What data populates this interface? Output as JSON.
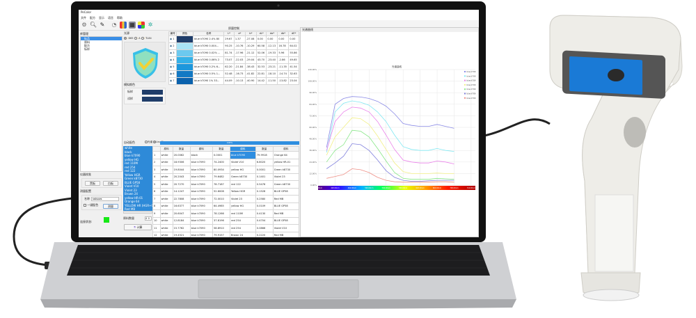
{
  "app": {
    "title": "PeColor",
    "menu": [
      "文件",
      "配方",
      "显示",
      "语言",
      "帮助"
    ],
    "toolbar_icons": [
      "gear-icon",
      "search-icon",
      "pen-icon",
      "gauge-icon",
      "color-bars-icon",
      "palette-icon",
      "color-grid-icon",
      "settings-icon"
    ]
  },
  "library": {
    "header": "库管理",
    "items": [
      "标品",
      "原料",
      "配方",
      "标样"
    ]
  },
  "light_source": {
    "label": "光源",
    "options": [
      "D65",
      "A",
      "TL84"
    ],
    "selected": "D65"
  },
  "simulated_color": {
    "label": "模拟颜色",
    "standard_label": "标样",
    "sample_label": "试样",
    "standard_color": "#1f3d6a",
    "sample_color": "#1f3d6a"
  },
  "instrument_status": {
    "label": "仪器校准",
    "black_button": "黑板",
    "white_button": "白板"
  },
  "measure_config": {
    "label": "测量配置",
    "name_label": "名称",
    "name_value": "radsows",
    "one_key_label": "一键配色",
    "measure_button": "测量"
  },
  "connection": {
    "label": "连接状态:",
    "status_color": "#16e816"
  },
  "quality_table": {
    "title": "质量控制",
    "headers": [
      "编号",
      "颜色",
      "名称",
      "L*",
      "a*",
      "b*",
      "dL*",
      "da*",
      "db*",
      "dE*"
    ],
    "rows": [
      {
        "no": "1",
        "color": "#1f3d6a",
        "cells": [
          "blue k7090 2.4% 80",
          "29.67",
          "1.37",
          "-27.08",
          "0.00",
          "0.00",
          "0.00",
          "0.00"
        ]
      },
      {
        "no": "2",
        "color": "#a9e3f5",
        "cells": [
          "blue k7090 0.004...",
          "90.25",
          "-10.76",
          "-10.29",
          "60.58",
          "-12.13",
          "16.78",
          "64.02"
        ]
      },
      {
        "no": "3",
        "color": "#6cc9ef",
        "cells": [
          "blue k7090 0.02% ...",
          "81.74",
          "-17.96",
          "-21.12",
          "52.06",
          "-19.33",
          "5.96",
          "55.86"
        ]
      },
      {
        "no": "4",
        "color": "#35b1e8",
        "cells": [
          "blue k7090 0.06% 2",
          "73.07",
          "-22.03",
          "-29.04",
          "43.70",
          "-23.40",
          "-2.86",
          "49.65"
        ]
      },
      {
        "no": "5",
        "color": "#1d97dc",
        "cells": [
          "blue k7090 0.2% 6...",
          "62.20",
          "-21.84",
          "-38.43",
          "32.53",
          "-23.21",
          "-11.35",
          "41.54"
        ]
      },
      {
        "no": "6",
        "color": "#1279c4",
        "cells": [
          "blue k7090 0.5% 1...",
          "52.48",
          "-16.73",
          "-41.82",
          "22.81",
          "-18.10",
          "-14.74",
          "32.63"
        ]
      },
      {
        "no": "7",
        "color": "#0b62ad",
        "cells": [
          "blue k7090 1% 33...",
          "44.09",
          "-10.13",
          "-40.90",
          "14.42",
          "-11.50",
          "-13.82",
          "23.04"
        ]
      }
    ]
  },
  "auto_match": {
    "label": "自动配色",
    "modes": [
      "光谱",
      "LinaGin"
    ],
    "selected_mode": "LinaGin",
    "progress_percent": 100,
    "progress_text": "100%",
    "materials": [
      "white",
      "black",
      "blue k7090",
      "yellow HG",
      "red 110M",
      "red 254",
      "red 122",
      "Yellow HGR",
      "Green k8730",
      "BLUE GP58",
      "Violet V10",
      "Violet 23",
      "Brown 24",
      "yellow HR-01",
      "Orange 64",
      "YELLOW HR (HGR+O...",
      "Red MB"
    ],
    "material_count_label": "原料数量",
    "material_count_value": "4",
    "calculate_button": "计算",
    "headers": [
      "原料",
      "数量",
      "原料",
      "数量",
      "原料",
      "数量",
      "原料"
    ],
    "rows": [
      [
        "white",
        "20.0062",
        "black",
        "0.0001",
        "blue k7090",
        "79.9918",
        "Orange 64"
      ],
      [
        "white",
        "18.9306",
        "blue k7090",
        "74.2400",
        "Violet V10",
        "6.8020",
        "yellow HR-01"
      ],
      [
        "white",
        "19.8044",
        "blue k7090",
        "80.0934",
        "yellow HG",
        "0.0001",
        "Green k8730"
      ],
      [
        "white",
        "20.2043",
        "blue k7090",
        "79.6482",
        "Green k8730",
        "0.1401",
        "Violet 23"
      ],
      [
        "white",
        "20.7270",
        "blue k7090",
        "78.7187",
        "red 122",
        "0.5476",
        "Green k8730"
      ],
      [
        "white",
        "14.1247",
        "blue k7090",
        "52.6008",
        "Yellow HGR",
        "0.1528",
        "BLUE GP58"
      ],
      [
        "white",
        "22.7808",
        "blue k7090",
        "72.0010",
        "Violet 23",
        "0.2580",
        "Red MB"
      ],
      [
        "white",
        "16.6377",
        "blue k7090",
        "64.4985",
        "yellow HG",
        "0.0109",
        "BLUE GP58"
      ],
      [
        "white",
        "20.6047",
        "blue k7090",
        "78.1266",
        "red 110M",
        "0.4130",
        "Red MB"
      ],
      [
        "white",
        "12.8184",
        "blue k7090",
        "37.8196",
        "red 254",
        "0.4704",
        "BLUE GP58"
      ],
      [
        "white",
        "15.7762",
        "blue k7090",
        "58.8910",
        "red 254",
        "0.0866",
        "Violet V10"
      ],
      [
        "white",
        "19.4521",
        "blue k7090",
        "79.9157",
        "Brown 24",
        "0.2220",
        "Red MB"
      ]
    ]
  },
  "spectrum_panel": {
    "header": "光谱曲线"
  },
  "chart_data": {
    "type": "line",
    "title": "光谱曲线",
    "xlabel": "",
    "ylabel": "",
    "xlim": [
      380,
      750
    ],
    "ylim": [
      0,
      120
    ],
    "grid": true,
    "legend_position": "top-right",
    "x_ticks": [
      "380.00nm",
      "420.00nm",
      "460.00nm",
      "500.00nm",
      "540.00nm",
      "580.00nm",
      "620.00nm",
      "660.00nm",
      "700.00nm",
      "740.00nm"
    ],
    "y_ticks": [
      "0.00%",
      "12.00%",
      "24.00%",
      "36.00%",
      "48.00%",
      "60.00%",
      "72.00%",
      "84.00%",
      "96.00%",
      "108.00%",
      "120.00%"
    ],
    "x": [
      400,
      420,
      440,
      460,
      480,
      500,
      520,
      540,
      560,
      580,
      600,
      620,
      640,
      660,
      680,
      700
    ],
    "series": [
      {
        "name": "blue k709",
        "color": "#8a8ae6",
        "values": [
          39,
          84,
          90,
          92,
          91.5,
          90,
          87,
          82,
          74,
          64,
          62,
          61,
          61,
          63,
          61,
          59
        ]
      },
      {
        "name": "blue k709",
        "color": "#7fe8f2",
        "values": [
          34,
          76,
          85,
          87.5,
          86,
          83,
          76,
          66,
          52,
          40,
          37,
          36,
          36,
          38,
          36,
          35
        ]
      },
      {
        "name": "blue k709",
        "color": "#ea82ea",
        "values": [
          36,
          66,
          76,
          81,
          80,
          76,
          66,
          52,
          37,
          26,
          24,
          23,
          23,
          25,
          24,
          22
        ]
      },
      {
        "name": "blue k709",
        "color": "#f2ef86",
        "values": [
          31,
          50,
          60,
          70,
          69,
          63,
          51,
          37,
          23,
          14,
          12,
          12,
          12,
          12.5,
          12,
          12
        ]
      },
      {
        "name": "blue k709",
        "color": "#86e686",
        "values": [
          24,
          36,
          42,
          57,
          56,
          50,
          38,
          25,
          13,
          7,
          6,
          6,
          6,
          7,
          6.5,
          6
        ]
      },
      {
        "name": "blue k709",
        "color": "#8080dd",
        "values": [
          17,
          23,
          30,
          43,
          42,
          36,
          26,
          15,
          8,
          5,
          4,
          4,
          4.5,
          5,
          5,
          5
        ]
      },
      {
        "name": "blue k709",
        "color": "#ee8f86",
        "values": [
          7,
          9,
          11,
          17,
          16,
          13,
          8,
          5,
          3.5,
          3,
          3,
          3,
          3,
          3.5,
          3.5,
          3
        ]
      }
    ]
  }
}
